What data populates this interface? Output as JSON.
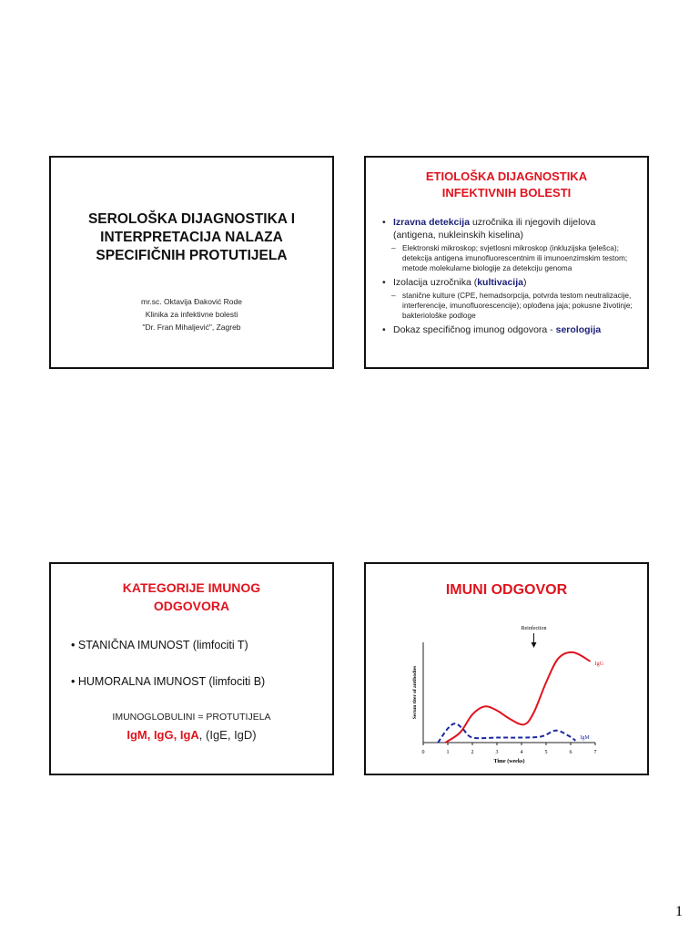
{
  "slide1": {
    "title": [
      "SEROLOŠKA DIJAGNOSTIKA I",
      "INTERPRETACIJA NALAZA",
      "SPECIFIČNIH PROTUTIJELA"
    ],
    "author": "mr.sc. Oktavija Đaković Rode",
    "clinic": "Klinika za infektivne bolesti",
    "hospital": "\"Dr. Fran Mihaljević\", Zagreb"
  },
  "slide2": {
    "title": [
      "ETIOLOŠKA DIJAGNOSTIKA",
      "INFEKTIVNIH BOLESTI"
    ],
    "b1_bold": "Izravna detekcija",
    "b1_rest": " uzročnika ili njegovih dijelova (antigena, nukleinskih kiselina)",
    "d1": "Elektronski mikroskop; svjetlosni mikroskop (inkluzijska tjelešca); detekcija antigena imunofluorescentnim ili imunoenzimskim testom; metode molekularne biologije za detekciju genoma",
    "b2_pre": "Izolacija uzročnika (",
    "b2_bold": "kultivacija",
    "b2_post": ")",
    "d2": "stanične kulture (CPE, hemadsorpcija, potvrda testom neutralizacije, interferencije, imunofluorescencije); oplođena jaja; pokusne životinje; bakteriološke podloge",
    "b3_pre": "Dokaz specifičnog imunog odgovora - ",
    "b3_bold": "serologija"
  },
  "slide3": {
    "title": [
      "KATEGORIJE IMUNOG",
      "ODGOVORA"
    ],
    "b1": "STANIČNA IMUNOST (limfociti T)",
    "b2": "HUMORALNA IMUNOST (limfociti B)",
    "line": "IMUNOGLOBULINI = PROTUTIJELA",
    "red": "IgM, IgG, IgA",
    "rest": ", (IgE, IgD)"
  },
  "slide4": {
    "title": "IMUNI ODGOVOR"
  },
  "chart_data": {
    "type": "line",
    "xlabel": "Time (weeks)",
    "ylabel": "Serum titer of antibodies",
    "xlim": [
      0,
      7
    ],
    "ylim": [
      0,
      100
    ],
    "xticks": [
      "0",
      "1",
      "2",
      "3",
      "4",
      "5",
      "6",
      "7"
    ],
    "annotation": "Reinfection",
    "annotation_x": 4.5,
    "series": [
      {
        "name": "IgG",
        "color": "#e0141e",
        "dash": false,
        "x": [
          0.9,
          1.5,
          2,
          2.5,
          3,
          3.5,
          4.1,
          4.5,
          5,
          5.5,
          6.1,
          6.8
        ],
        "y": [
          0,
          10,
          28,
          36,
          32,
          24,
          18,
          30,
          60,
          84,
          90,
          81
        ]
      },
      {
        "name": "IgM",
        "color": "#1b2aa0",
        "dash": true,
        "x": [
          0.6,
          1,
          1.3,
          1.6,
          2,
          3,
          4,
          4.8,
          5.4,
          5.9,
          6.2
        ],
        "y": [
          0,
          14,
          19,
          14,
          5,
          5,
          5,
          6,
          12,
          7,
          2
        ]
      }
    ]
  },
  "page_number": "1"
}
